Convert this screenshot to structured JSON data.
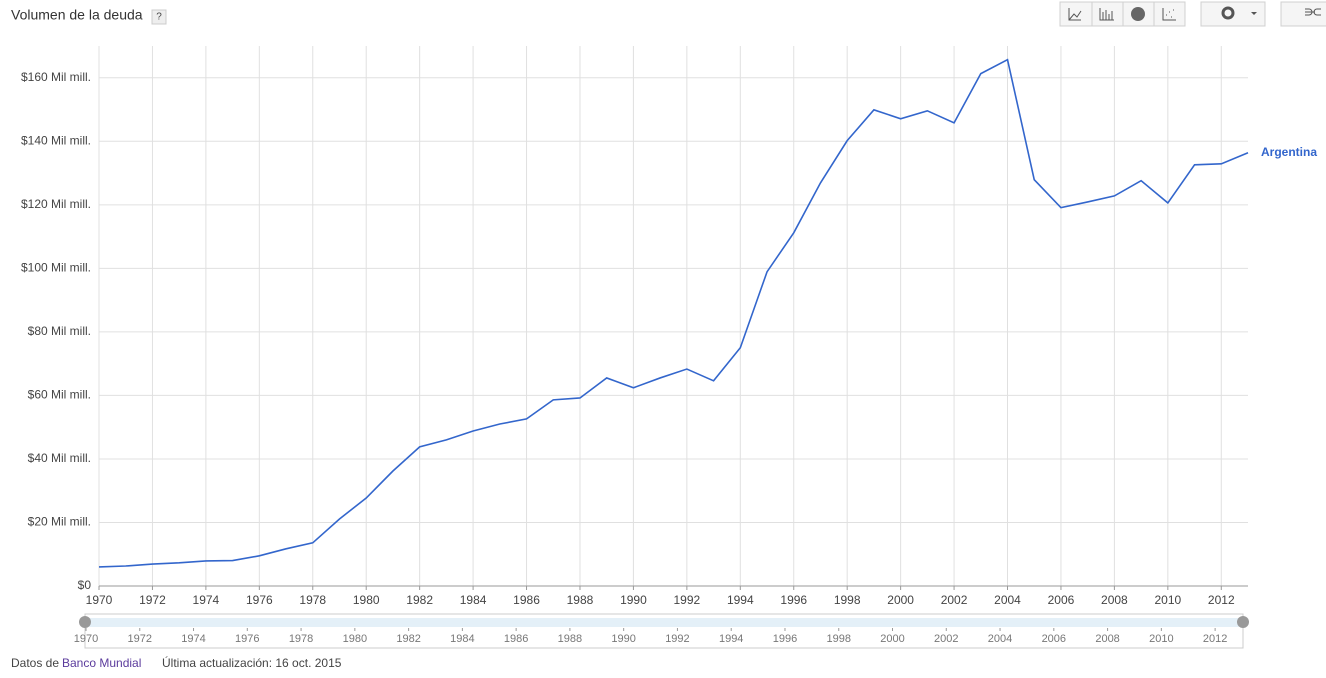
{
  "chart_data": {
    "type": "line",
    "title": "Volumen de la deuda",
    "x": [
      1970,
      1971,
      1972,
      1973,
      1974,
      1975,
      1976,
      1977,
      1978,
      1979,
      1980,
      1981,
      1982,
      1983,
      1984,
      1985,
      1986,
      1987,
      1988,
      1989,
      1990,
      1991,
      1992,
      1993,
      1994,
      1995,
      1996,
      1997,
      1998,
      1999,
      2000,
      2001,
      2002,
      2003,
      2004,
      2005,
      2006,
      2007,
      2008,
      2009,
      2010,
      2011,
      2012,
      2013
    ],
    "series": [
      {
        "name": "Argentina",
        "color": "#3366cc",
        "values": [
          6.0,
          6.3,
          6.9,
          7.3,
          7.9,
          8.0,
          9.5,
          11.7,
          13.6,
          21.1,
          27.7,
          36.2,
          43.8,
          46.0,
          48.8,
          51.0,
          52.6,
          58.6,
          59.2,
          65.5,
          62.4,
          65.5,
          68.3,
          64.6,
          75.0,
          98.9,
          111.2,
          126.9,
          140.2,
          149.9,
          147.1,
          149.6,
          145.8,
          161.3,
          165.7,
          127.9,
          119.1,
          120.9,
          122.8,
          127.6,
          120.6,
          132.6,
          132.9,
          136.4
        ]
      }
    ],
    "xlim": [
      1970,
      2013
    ],
    "xticks": [
      1970,
      1972,
      1974,
      1976,
      1978,
      1980,
      1982,
      1984,
      1986,
      1988,
      1990,
      1992,
      1994,
      1996,
      1998,
      2000,
      2002,
      2004,
      2006,
      2008,
      2010,
      2012
    ],
    "ylim": [
      0,
      170
    ],
    "yticks": [
      {
        "value": 0,
        "label": "$0"
      },
      {
        "value": 20,
        "label": "$20 Mil mill."
      },
      {
        "value": 40,
        "label": "$40 Mil mill."
      },
      {
        "value": 60,
        "label": "$60 Mil mill."
      },
      {
        "value": 80,
        "label": "$80 Mil mill."
      },
      {
        "value": 100,
        "label": "$100 Mil mill."
      },
      {
        "value": 120,
        "label": "$120 Mil mill."
      },
      {
        "value": 140,
        "label": "$140 Mil mill."
      },
      {
        "value": 160,
        "label": "$160 Mil mill."
      }
    ],
    "grid": true
  },
  "ui": {
    "help": "?",
    "source_prefix": "Datos de",
    "source": "Banco Mundial",
    "updated": "Última actualización: 16 oct. 2015"
  }
}
